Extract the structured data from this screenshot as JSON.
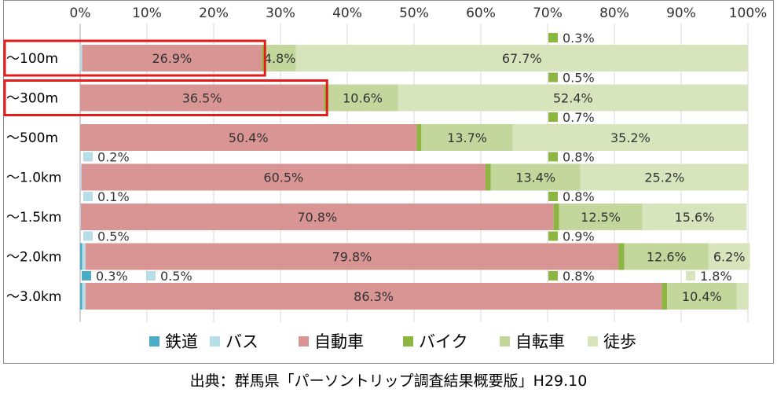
{
  "chart_data": {
    "type": "bar",
    "stacked": true,
    "orientation": "horizontal",
    "percent_axis": true,
    "xlim": [
      0,
      100
    ],
    "x_ticks": [
      "0%",
      "10%",
      "20%",
      "30%",
      "40%",
      "50%",
      "60%",
      "70%",
      "80%",
      "90%",
      "100%"
    ],
    "categories": [
      "～100m",
      "～300m",
      "～500m",
      "～1.0km",
      "～1.5km",
      "～2.0km",
      "～3.0km"
    ],
    "series": [
      {
        "name": "鉄道",
        "color": "#4bacc6",
        "values": [
          0,
          0,
          0,
          0,
          0,
          0.3,
          0.3
        ]
      },
      {
        "name": "バス",
        "color": "#b7dee8",
        "values": [
          0.3,
          0,
          0,
          0.2,
          0.1,
          0.5,
          0.5
        ]
      },
      {
        "name": "自動車",
        "color": "#d99594",
        "values": [
          26.9,
          36.5,
          50.4,
          60.5,
          70.8,
          79.8,
          86.3
        ]
      },
      {
        "name": "バイク",
        "color": "#8db542",
        "values": [
          0.3,
          0.5,
          0.7,
          0.8,
          0.8,
          0.9,
          0.8
        ]
      },
      {
        "name": "自転車",
        "color": "#c3d69b",
        "values": [
          4.8,
          10.6,
          13.7,
          13.4,
          12.5,
          12.6,
          10.4
        ]
      },
      {
        "name": "徒歩",
        "color": "#d8e4bc",
        "values": [
          67.7,
          52.4,
          35.2,
          25.2,
          15.6,
          6.2,
          1.8
        ]
      }
    ],
    "data_labels": [
      {
        "row": 0,
        "labels": [
          [
            "自動車",
            "26.9%"
          ],
          [
            "自転車",
            "4.8%"
          ],
          [
            "徒歩",
            "67.7%"
          ]
        ]
      },
      {
        "row": 1,
        "labels": [
          [
            "自動車",
            "36.5%"
          ],
          [
            "自転車",
            "10.6%"
          ],
          [
            "徒歩",
            "52.4%"
          ]
        ]
      },
      {
        "row": 2,
        "labels": [
          [
            "自動車",
            "50.4%"
          ],
          [
            "自転車",
            "13.7%"
          ],
          [
            "徒歩",
            "35.2%"
          ]
        ]
      },
      {
        "row": 3,
        "labels": [
          [
            "自動車",
            "60.5%"
          ],
          [
            "自転車",
            "13.4%"
          ],
          [
            "徒歩",
            "25.2%"
          ]
        ]
      },
      {
        "row": 4,
        "labels": [
          [
            "自動車",
            "70.8%"
          ],
          [
            "自転車",
            "12.5%"
          ],
          [
            "徒歩",
            "15.6%"
          ]
        ]
      },
      {
        "row": 5,
        "labels": [
          [
            "自動車",
            "79.8%"
          ],
          [
            "自転車",
            "12.6%"
          ],
          [
            "徒歩",
            "6.2%"
          ]
        ]
      },
      {
        "row": 6,
        "labels": [
          [
            "自動車",
            "86.3%"
          ],
          [
            "自転車",
            "10.4%"
          ]
        ]
      }
    ],
    "callouts": [
      {
        "row": 0,
        "series": "バイク",
        "text": "0.3%"
      },
      {
        "row": 1,
        "series": "バイク",
        "text": "0.5%"
      },
      {
        "row": 2,
        "series": "バイク",
        "text": "0.7%"
      },
      {
        "row": 3,
        "series": "バス",
        "text": "0.2%"
      },
      {
        "row": 3,
        "series": "バイク",
        "text": "0.8%"
      },
      {
        "row": 4,
        "series": "バス",
        "text": "0.1%"
      },
      {
        "row": 4,
        "series": "バイク",
        "text": "0.8%"
      },
      {
        "row": 5,
        "series": "バス",
        "text": "0.5%"
      },
      {
        "row": 5,
        "series": "バイク",
        "text": "0.9%"
      },
      {
        "row": 6,
        "series": "鉄道",
        "text": "0.3%"
      },
      {
        "row": 6,
        "series": "バス",
        "text": "0.5%"
      },
      {
        "row": 6,
        "series": "バイク",
        "text": "0.8%"
      },
      {
        "row": 6,
        "series": "徒歩",
        "text": "1.8%"
      }
    ],
    "highlighted_rows": [
      0,
      1
    ],
    "highlight_color": "#e31b1b",
    "legend_position": "bottom",
    "grid": true
  },
  "source_note": "出典：群馬県「パーソントリップ調査結果概要版」H29.10"
}
